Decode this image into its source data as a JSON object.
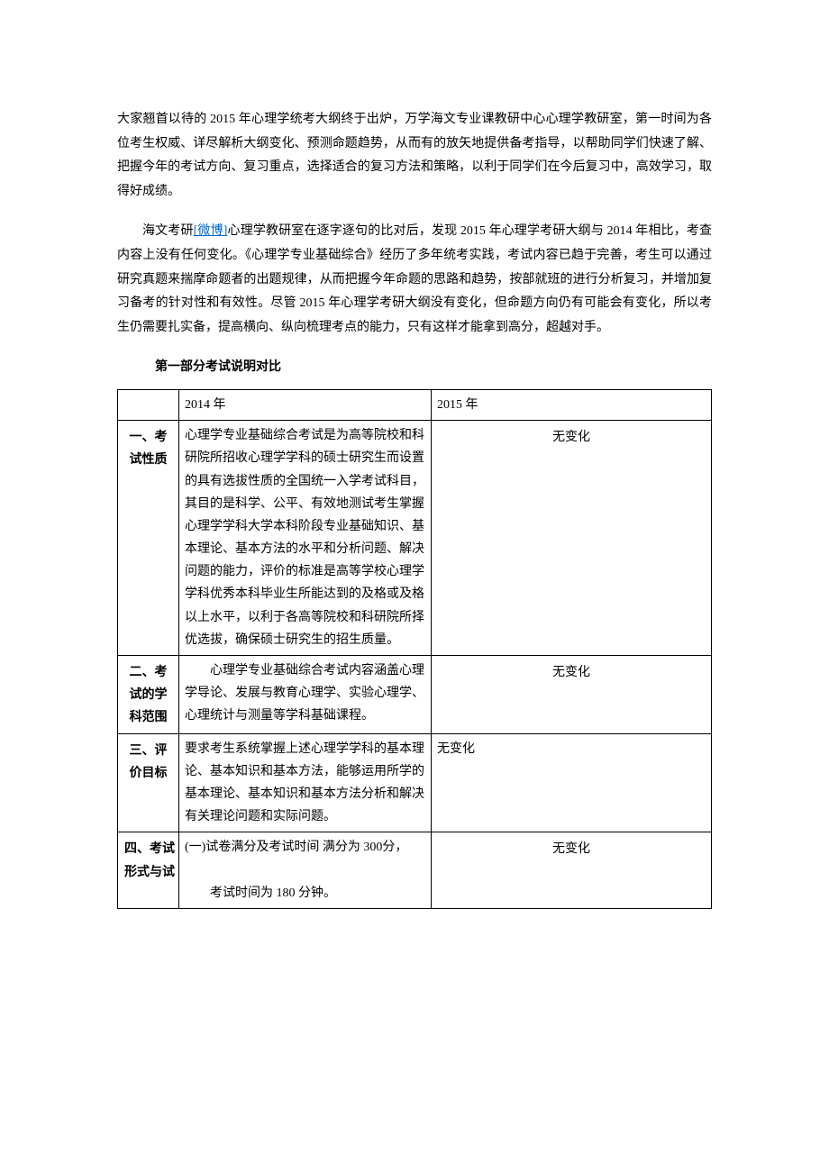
{
  "paragraphs": {
    "p1": "大家翘首以待的 2015 年心理学统考大纲终于出炉，万学海文专业课教研中心心理学教研室，第一时间为各位考生权威、详尽解析大纲变化、预测命题趋势，从而有的放矢地提供备考指导，以帮助同学们快速了解、把握今年的考试方向、复习重点，选择适合的复习方法和策略，以利于同学们在今后复习中，高效学习，取得好成绩。",
    "p2a": "海文考研",
    "p2link": "[微博]",
    "p2b": "心理学教研室在逐字逐句的比对后，发现 2015 年心理学考研大纲与 2014 年相比，考查内容上没有任何变化。《心理学专业基础综合》经历了多年统考实践，考试内容已趋于完善，考生可以通过研究真题来揣摩命题者的出题规律，从而把握今年命题的思路和趋势，按部就班的进行分析复习，并增加复习备考的针对性和有效性。尽管 2015 年心理学考研大纲没有变化，但命题方向仍有可能会有变化，所以考生仍需要扎实备，提高横向、纵向梳理考点的能力，只有这样才能拿到高分，超越对手。"
  },
  "section_title": "第一部分考试说明对比",
  "table": {
    "headers": {
      "blank": "",
      "y2014": "2014 年",
      "y2015": "2015 年"
    },
    "rows": [
      {
        "label": "一、考试性质",
        "c2014": "心理学专业基础综合考试是为高等院校和科研院所招收心理学学科的硕士研究生而设置的具有选拔性质的全国统一入学考试科目，其目的是科学、公平、有效地测试考生掌握心理学学科大学本科阶段专业基础知识、基本理论、基本方法的水平和分析问题、解决问题的能力，评价的标准是高等学校心理学学科优秀本科毕业生所能达到的及格或及格以上水平，以利于各高等院校和科研院所择优选拔，确保硕士研究生的招生质量。",
        "c2015": "无变化",
        "c2015_center": true
      },
      {
        "label": "二、考试的学科范围",
        "c2014": "　　心理学专业基础综合考试内容涵盖心理学导论、发展与教育心理学、实验心理学、心理统计与测量等学科基础课程。",
        "c2015": "无变化",
        "c2015_center": true
      },
      {
        "label": "三、评价目标",
        "c2014": "要求考生系统掌握上述心理学学科的基本理论、基本知识和基本方法，能够运用所学的基本理论、基本知识和基本方法分析和解决有关理论问题和实际问题。",
        "c2015": "无变化",
        "c2015_center": false
      },
      {
        "label": "四、考试形式与试",
        "c2014_l1": "(一)试卷满分及考试时间 满分为 300分，",
        "c2014_l2": "　　考试时间为 180 分钟。",
        "c2015": "无变化",
        "c2015_center": true
      }
    ]
  },
  "styling": {
    "body_width": 920,
    "body_bg": "#ffffff",
    "text_color": "#000000",
    "link_color": "#0066cc",
    "border_color": "#000000",
    "font_size": 14,
    "line_height": 1.9,
    "font_family": "SimSun"
  }
}
